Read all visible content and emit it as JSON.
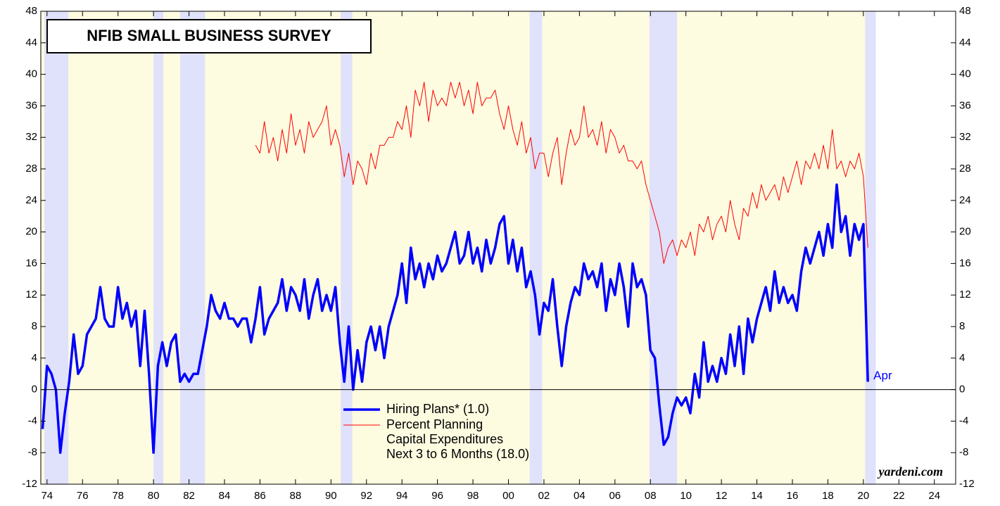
{
  "chart_data": {
    "type": "line",
    "title": "NFIB SMALL BUSINESS SURVEY",
    "source": "yardeni.com",
    "annotations": [
      "Apr"
    ],
    "xlim": [
      1973.65,
      2025.2
    ],
    "xticks": [
      {
        "value": 1974,
        "label": "74"
      },
      {
        "value": 1976,
        "label": "76"
      },
      {
        "value": 1978,
        "label": "78"
      },
      {
        "value": 1980,
        "label": "80"
      },
      {
        "value": 1982,
        "label": "82"
      },
      {
        "value": 1984,
        "label": "84"
      },
      {
        "value": 1986,
        "label": "86"
      },
      {
        "value": 1988,
        "label": "88"
      },
      {
        "value": 1990,
        "label": "90"
      },
      {
        "value": 1992,
        "label": "92"
      },
      {
        "value": 1994,
        "label": "94"
      },
      {
        "value": 1996,
        "label": "96"
      },
      {
        "value": 1998,
        "label": "98"
      },
      {
        "value": 2000,
        "label": "00"
      },
      {
        "value": 2002,
        "label": "02"
      },
      {
        "value": 2004,
        "label": "04"
      },
      {
        "value": 2006,
        "label": "06"
      },
      {
        "value": 2008,
        "label": "08"
      },
      {
        "value": 2010,
        "label": "10"
      },
      {
        "value": 2012,
        "label": "12"
      },
      {
        "value": 2014,
        "label": "14"
      },
      {
        "value": 2016,
        "label": "16"
      },
      {
        "value": 2018,
        "label": "18"
      },
      {
        "value": 2020,
        "label": "20"
      },
      {
        "value": 2022,
        "label": "22"
      },
      {
        "value": 2024,
        "label": "24"
      }
    ],
    "ylim": [
      -12,
      48
    ],
    "yticks": [
      -12,
      -8,
      -4,
      0,
      4,
      8,
      12,
      16,
      20,
      24,
      28,
      32,
      36,
      40,
      44,
      48
    ],
    "recessions": [
      [
        1973.85,
        1975.2
      ],
      [
        1980.0,
        1980.55
      ],
      [
        1981.5,
        1982.9
      ],
      [
        1990.55,
        1991.2
      ],
      [
        2001.2,
        2001.9
      ],
      [
        2007.95,
        2009.5
      ],
      [
        2020.1,
        2020.7
      ]
    ],
    "series": [
      {
        "name": "Hiring Plans* (1.0)",
        "color": "#0000ff",
        "x": [
          1973.75,
          1974,
          1974.25,
          1974.5,
          1974.75,
          1975,
          1975.25,
          1975.5,
          1975.75,
          1976,
          1976.25,
          1976.5,
          1976.75,
          1977,
          1977.25,
          1977.5,
          1977.75,
          1978,
          1978.25,
          1978.5,
          1978.75,
          1979,
          1979.25,
          1979.5,
          1979.75,
          1980,
          1980.25,
          1980.5,
          1980.75,
          1981,
          1981.25,
          1981.5,
          1981.75,
          1982,
          1982.25,
          1982.5,
          1982.75,
          1983,
          1983.25,
          1983.5,
          1983.75,
          1984,
          1984.25,
          1984.5,
          1984.75,
          1985,
          1985.25,
          1985.5,
          1985.75,
          1986,
          1986.25,
          1986.5,
          1986.75,
          1987,
          1987.25,
          1987.5,
          1987.75,
          1988,
          1988.25,
          1988.5,
          1988.75,
          1989,
          1989.25,
          1989.5,
          1989.75,
          1990,
          1990.25,
          1990.5,
          1990.75,
          1991,
          1991.25,
          1991.5,
          1991.75,
          1992,
          1992.25,
          1992.5,
          1992.75,
          1993,
          1993.25,
          1993.5,
          1993.75,
          1994,
          1994.25,
          1994.5,
          1994.75,
          1995,
          1995.25,
          1995.5,
          1995.75,
          1996,
          1996.25,
          1996.5,
          1996.75,
          1997,
          1997.25,
          1997.5,
          1997.75,
          1998,
          1998.25,
          1998.5,
          1998.75,
          1999,
          1999.25,
          1999.5,
          1999.75,
          2000,
          2000.25,
          2000.5,
          2000.75,
          2001,
          2001.25,
          2001.5,
          2001.75,
          2002,
          2002.25,
          2002.5,
          2002.75,
          2003,
          2003.25,
          2003.5,
          2003.75,
          2004,
          2004.25,
          2004.5,
          2004.75,
          2005,
          2005.25,
          2005.5,
          2005.75,
          2006,
          2006.25,
          2006.5,
          2006.75,
          2007,
          2007.25,
          2007.5,
          2007.75,
          2008,
          2008.25,
          2008.5,
          2008.75,
          2009,
          2009.25,
          2009.5,
          2009.75,
          2010,
          2010.25,
          2010.5,
          2010.75,
          2011,
          2011.25,
          2011.5,
          2011.75,
          2012,
          2012.25,
          2012.5,
          2012.75,
          2013,
          2013.25,
          2013.5,
          2013.75,
          2014,
          2014.25,
          2014.5,
          2014.75,
          2015,
          2015.25,
          2015.5,
          2015.75,
          2016,
          2016.25,
          2016.5,
          2016.75,
          2017,
          2017.25,
          2017.5,
          2017.75,
          2018,
          2018.25,
          2018.5,
          2018.75,
          2019,
          2019.25,
          2019.5,
          2019.75,
          2020,
          2020.25
        ],
        "values": [
          -5,
          3,
          2,
          0,
          -8,
          -3,
          1,
          7,
          2,
          3,
          7,
          8,
          9,
          13,
          9,
          8,
          8,
          13,
          9,
          11,
          8,
          10,
          3,
          10,
          2,
          -8,
          3,
          6,
          3,
          6,
          7,
          1,
          2,
          1,
          2,
          2,
          5,
          8,
          12,
          10,
          9,
          11,
          9,
          9,
          8,
          9,
          9,
          6,
          9,
          13,
          7,
          9,
          10,
          11,
          14,
          10,
          13,
          12,
          10,
          14,
          9,
          12,
          14,
          10,
          12,
          10,
          13,
          6,
          1,
          8,
          0,
          5,
          1,
          6,
          8,
          5,
          8,
          4,
          8,
          10,
          12,
          16,
          11,
          18,
          14,
          16,
          13,
          16,
          14,
          17,
          15,
          16,
          18,
          20,
          16,
          17,
          20,
          16,
          18,
          15,
          19,
          16,
          18,
          21,
          22,
          16,
          19,
          15,
          18,
          13,
          15,
          12,
          7,
          11,
          10,
          14,
          8,
          3,
          8,
          11,
          13,
          12,
          16,
          14,
          15,
          13,
          16,
          10,
          14,
          12,
          16,
          13,
          8,
          16,
          13,
          14,
          12,
          5,
          4,
          -2,
          -7,
          -6,
          -3,
          -1,
          -2,
          -1,
          -3,
          2,
          -1,
          6,
          1,
          3,
          1,
          4,
          2,
          7,
          3,
          8,
          2,
          9,
          6,
          9,
          11,
          13,
          10,
          15,
          11,
          13,
          11,
          12,
          10,
          15,
          18,
          16,
          18,
          20,
          17,
          21,
          18,
          26,
          20,
          22,
          17,
          21,
          19,
          21,
          1
        ]
      },
      {
        "name": [
          "Percent Planning",
          "Capital Expenditures",
          "Next 3 to 6 Months (18.0)"
        ],
        "color": "#ff0000",
        "x": [
          1985.75,
          1986,
          1986.25,
          1986.5,
          1986.75,
          1987,
          1987.25,
          1987.5,
          1987.75,
          1988,
          1988.25,
          1988.5,
          1988.75,
          1989,
          1989.25,
          1989.5,
          1989.75,
          1990,
          1990.25,
          1990.5,
          1990.75,
          1991,
          1991.25,
          1991.5,
          1991.75,
          1992,
          1992.25,
          1992.5,
          1992.75,
          1993,
          1993.25,
          1993.5,
          1993.75,
          1994,
          1994.25,
          1994.5,
          1994.75,
          1995,
          1995.25,
          1995.5,
          1995.75,
          1996,
          1996.25,
          1996.5,
          1996.75,
          1997,
          1997.25,
          1997.5,
          1997.75,
          1998,
          1998.25,
          1998.5,
          1998.75,
          1999,
          1999.25,
          1999.5,
          1999.75,
          2000,
          2000.25,
          2000.5,
          2000.75,
          2001,
          2001.25,
          2001.5,
          2001.75,
          2002,
          2002.25,
          2002.5,
          2002.75,
          2003,
          2003.25,
          2003.5,
          2003.75,
          2004,
          2004.25,
          2004.5,
          2004.75,
          2005,
          2005.25,
          2005.5,
          2005.75,
          2006,
          2006.25,
          2006.5,
          2006.75,
          2007,
          2007.25,
          2007.5,
          2007.75,
          2008,
          2008.25,
          2008.5,
          2008.75,
          2009,
          2009.25,
          2009.5,
          2009.75,
          2010,
          2010.25,
          2010.5,
          2010.75,
          2011,
          2011.25,
          2011.5,
          2011.75,
          2012,
          2012.25,
          2012.5,
          2012.75,
          2013,
          2013.25,
          2013.5,
          2013.75,
          2014,
          2014.25,
          2014.5,
          2014.75,
          2015,
          2015.25,
          2015.5,
          2015.75,
          2016,
          2016.25,
          2016.5,
          2016.75,
          2017,
          2017.25,
          2017.5,
          2017.75,
          2018,
          2018.25,
          2018.5,
          2018.75,
          2019,
          2019.25,
          2019.5,
          2019.75,
          2020,
          2020.25
        ],
        "values": [
          31,
          30,
          34,
          30,
          32,
          29,
          33,
          30,
          35,
          31,
          33,
          30,
          34,
          32,
          33,
          34,
          36,
          31,
          33,
          31,
          27,
          30,
          26,
          29,
          28,
          26,
          30,
          28,
          31,
          31,
          32,
          32,
          34,
          33,
          36,
          32,
          38,
          36,
          39,
          34,
          38,
          36,
          37,
          36,
          39,
          37,
          39,
          36,
          38,
          35,
          39,
          36,
          37,
          37,
          38,
          35,
          33,
          36,
          33,
          31,
          34,
          30,
          32,
          28,
          30,
          30,
          27,
          30,
          32,
          26,
          30,
          33,
          31,
          32,
          36,
          32,
          33,
          31,
          34,
          30,
          33,
          32,
          30,
          31,
          29,
          29,
          28,
          29,
          26,
          24,
          22,
          20,
          16,
          18,
          19,
          17,
          19,
          18,
          20,
          17,
          21,
          20,
          22,
          19,
          21,
          22,
          20,
          24,
          21,
          19,
          23,
          22,
          25,
          23,
          26,
          24,
          25,
          26,
          24,
          27,
          25,
          27,
          29,
          26,
          29,
          28,
          30,
          28,
          31,
          28,
          33,
          28,
          29,
          27,
          29,
          28,
          30,
          27,
          18
        ]
      }
    ]
  }
}
